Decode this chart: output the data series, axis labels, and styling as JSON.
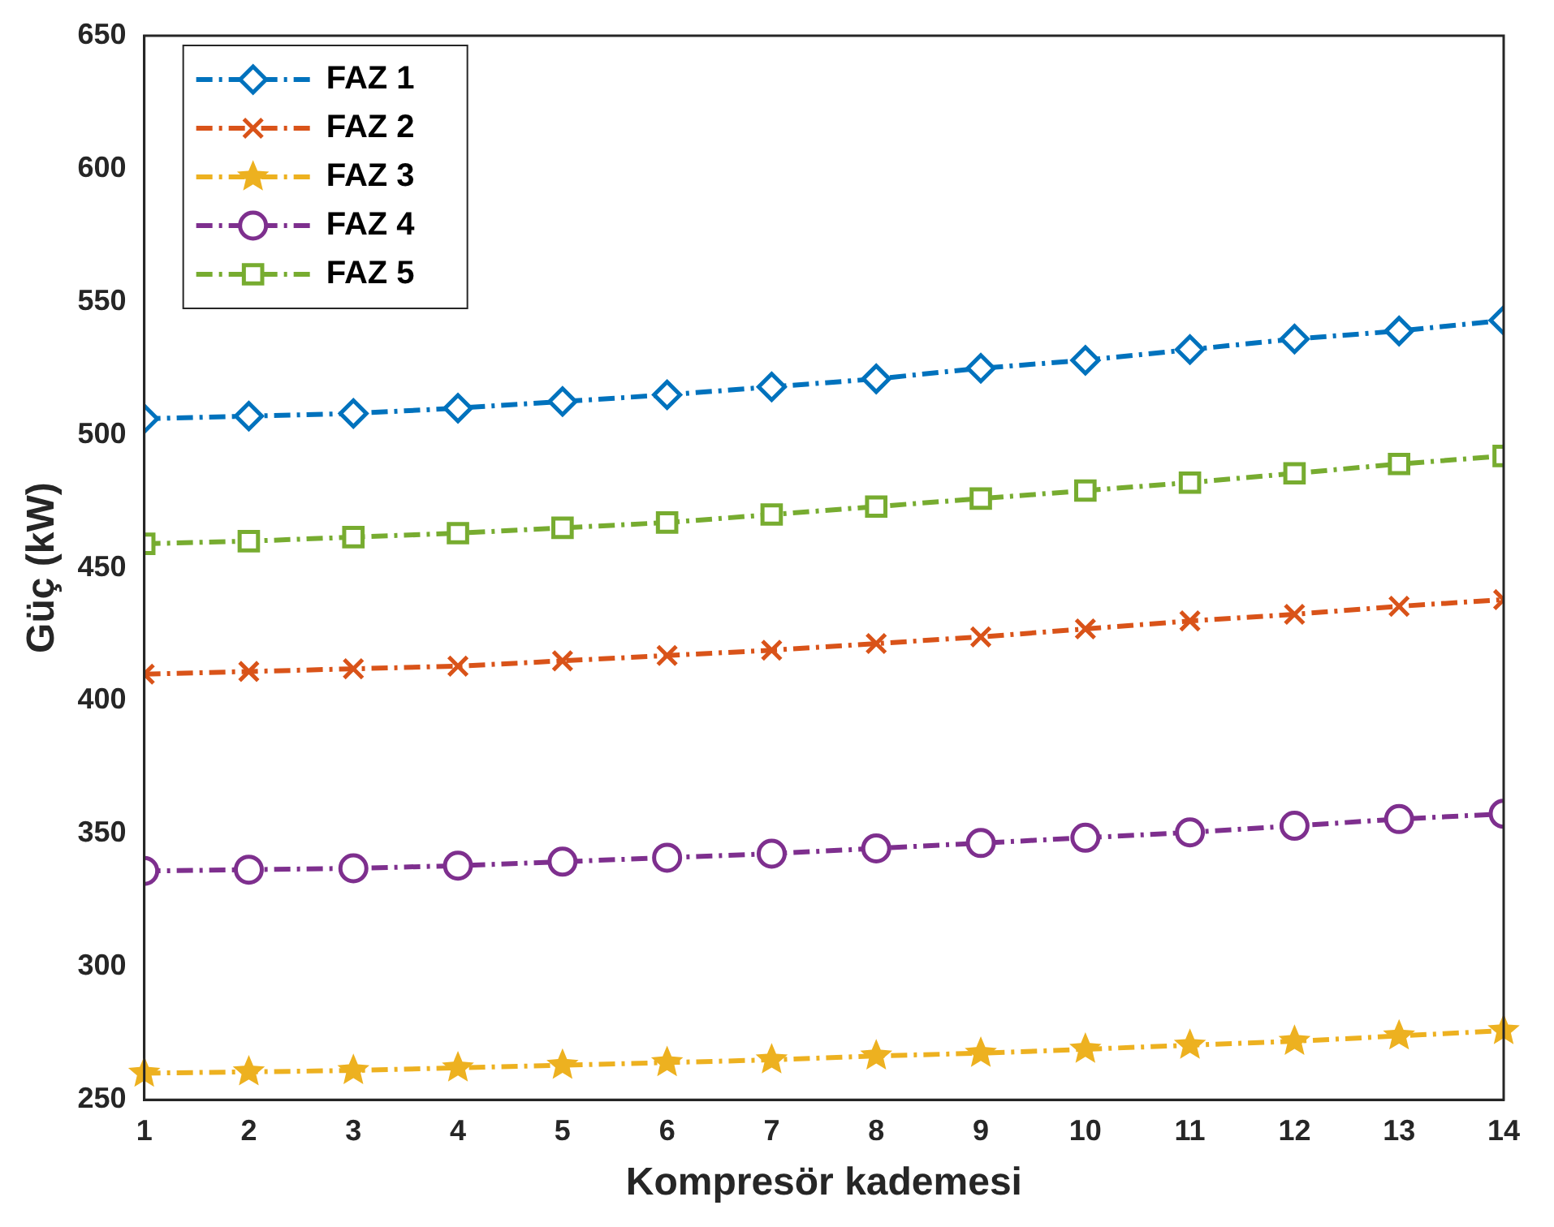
{
  "chart_data": {
    "type": "line",
    "xlabel": "Kompresör kademesi",
    "ylabel": "Güç (kW)",
    "x": [
      1,
      2,
      3,
      4,
      5,
      6,
      7,
      8,
      9,
      10,
      11,
      12,
      13,
      14
    ],
    "xlim": [
      1,
      14
    ],
    "xticks": [
      1,
      2,
      3,
      4,
      5,
      6,
      7,
      8,
      9,
      10,
      11,
      12,
      13,
      14
    ],
    "ylim": [
      250,
      650
    ],
    "yticks": [
      250,
      300,
      350,
      400,
      450,
      500,
      550,
      600,
      650
    ],
    "grid": false,
    "legend": "top left",
    "line_style": "dashed",
    "series": [
      {
        "name": "FAZ 1",
        "color": "#0072bd",
        "marker": "diamond",
        "values": [
          506,
          507,
          508,
          510,
          512.5,
          515,
          518,
          521,
          525,
          528,
          532,
          536,
          539,
          543
        ]
      },
      {
        "name": "FAZ 2",
        "color": "#d95319",
        "marker": "cross",
        "values": [
          410,
          411,
          412,
          413,
          415,
          417,
          419,
          421.5,
          424,
          427,
          430,
          432.5,
          435.5,
          438
        ]
      },
      {
        "name": "FAZ 3",
        "color": "#edb120",
        "marker": "star",
        "values": [
          260,
          260.5,
          261,
          262,
          263,
          264,
          265,
          266.5,
          267.5,
          269,
          270.5,
          272,
          274,
          276
        ]
      },
      {
        "name": "FAZ 4",
        "color": "#7e2f8e",
        "marker": "circle",
        "values": [
          336,
          336.5,
          337,
          338,
          339.5,
          341,
          342.5,
          344.5,
          346.5,
          348.5,
          350.5,
          353,
          355.5,
          357.5
        ]
      },
      {
        "name": "FAZ 5",
        "color": "#77ac30",
        "marker": "square",
        "values": [
          459,
          460,
          461.5,
          463,
          465,
          467,
          470,
          473,
          476,
          479,
          482,
          485.5,
          489,
          492
        ]
      }
    ]
  }
}
